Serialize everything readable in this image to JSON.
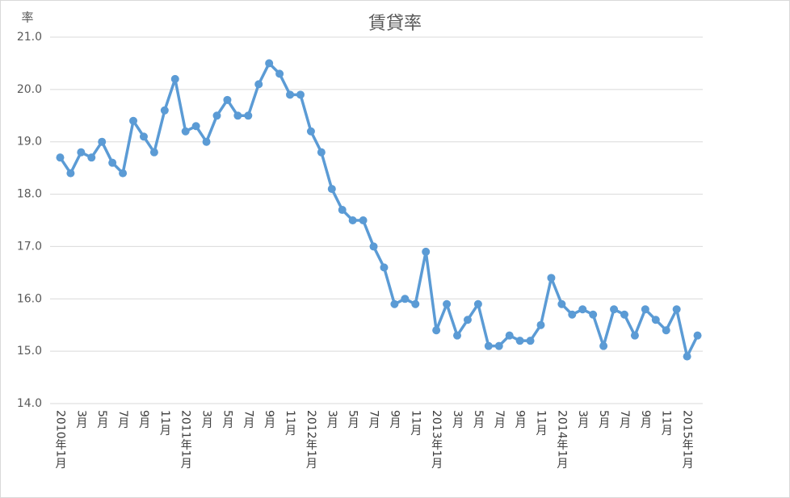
{
  "chart_data": {
    "type": "line",
    "title": "賃貸率",
    "y_label": "率",
    "categories": [
      "2010年1月",
      null,
      "3月",
      null,
      "5月",
      null,
      "7月",
      null,
      "9月",
      null,
      "11月",
      null,
      "2011年1月",
      null,
      "3月",
      null,
      "5月",
      null,
      "7月",
      null,
      "9月",
      null,
      "11月",
      null,
      "2012年1月",
      null,
      "3月",
      null,
      "5月",
      null,
      "7月",
      null,
      "9月",
      null,
      "11月",
      null,
      "2013年1月",
      null,
      "3月",
      null,
      "5月",
      null,
      "7月",
      null,
      "9月",
      null,
      "11月",
      null,
      "2014年1月",
      null,
      "3月",
      null,
      "5月",
      null,
      "7月",
      null,
      "9月",
      null,
      "11月",
      null,
      "2015年1月",
      null
    ],
    "values": [
      18.7,
      18.4,
      18.8,
      18.7,
      19.0,
      18.6,
      18.4,
      19.4,
      19.1,
      18.8,
      19.6,
      20.2,
      19.2,
      19.3,
      19.0,
      19.5,
      19.8,
      19.5,
      19.5,
      20.1,
      20.5,
      20.3,
      19.9,
      19.9,
      19.2,
      18.8,
      18.1,
      17.7,
      17.5,
      17.5,
      17.0,
      16.6,
      15.9,
      16.0,
      15.9,
      16.9,
      15.4,
      15.9,
      15.3,
      15.6,
      15.9,
      15.1,
      15.1,
      15.3,
      15.2,
      15.2,
      15.5,
      16.4,
      15.9,
      15.7,
      15.8,
      15.7,
      15.1,
      15.8,
      15.7,
      15.3,
      15.8,
      15.6,
      15.4,
      15.8,
      14.9,
      15.3
    ],
    "color": "#5b9bd5",
    "ylim": [
      14,
      21
    ],
    "yticks": [
      {
        "value": 14,
        "label": "14.0"
      },
      {
        "value": 15,
        "label": "15.0"
      },
      {
        "value": 16,
        "label": "16.0"
      },
      {
        "value": 17,
        "label": "17.0"
      },
      {
        "value": 18,
        "label": "18.0"
      },
      {
        "value": 19,
        "label": "19.0"
      },
      {
        "value": 20,
        "label": "20.0"
      },
      {
        "value": 21,
        "label": "21.0"
      }
    ],
    "grid": true
  }
}
